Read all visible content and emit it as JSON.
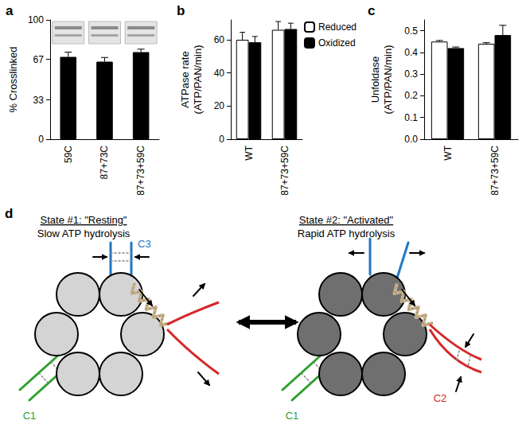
{
  "chart_data": [
    {
      "type": "bar",
      "title": "a",
      "y_label": "% Crosslinked",
      "categories": [
        "59C",
        "87+73C",
        "87+73+59C"
      ],
      "values": [
        69,
        65,
        73
      ],
      "errors": [
        4,
        3.5,
        2.5
      ],
      "color": "#000000",
      "ylim": [
        0,
        100
      ],
      "yticks": [
        0,
        33,
        67,
        100
      ],
      "grid": false
    },
    {
      "type": "bar",
      "title": "b",
      "y_label": "ATPase rate\n(ATP/PAN/min)",
      "categories": [
        "WT",
        "87+73+59C"
      ],
      "series": [
        {
          "name": "Reduced",
          "color": "#ffffff",
          "values": [
            60,
            66
          ],
          "errors": [
            4.5,
            5
          ]
        },
        {
          "name": "Oxidized",
          "color": "#000000",
          "values": [
            58.5,
            66.5
          ],
          "errors": [
            3.5,
            3.5
          ]
        }
      ],
      "ylim": [
        0,
        72
      ],
      "yticks": [
        0,
        20,
        40,
        60
      ],
      "legend": "top-right",
      "grid": false
    },
    {
      "type": "bar",
      "title": "c",
      "y_label": "Unfoldase\n(ATP/PAN/min)",
      "categories": [
        "WT",
        "87+73+59C"
      ],
      "series": [
        {
          "name": "Reduced",
          "color": "#ffffff",
          "values": [
            0.45,
            0.44
          ],
          "errors": [
            0.005,
            0.005
          ]
        },
        {
          "name": "Oxidized",
          "color": "#000000",
          "values": [
            0.42,
            0.48
          ],
          "errors": [
            0.005,
            0.045
          ]
        }
      ],
      "ylim": [
        0,
        0.55
      ],
      "yticks": [
        {
          "value": 0,
          "label": "0.0"
        },
        0.1,
        0.2,
        0.3,
        0.4,
        0.5
      ],
      "grid": false
    }
  ],
  "diagram": {
    "title": "d",
    "states": [
      {
        "title": "State #1: \"Resting\"",
        "subtitle": "Slow ATP hydrolysis",
        "blue": "C3",
        "green": "C1"
      },
      {
        "title": "State #2: \"Activated\"",
        "subtitle": "Rapid ATP hydrolysis",
        "green": "C1",
        "red": "C2"
      }
    ]
  }
}
